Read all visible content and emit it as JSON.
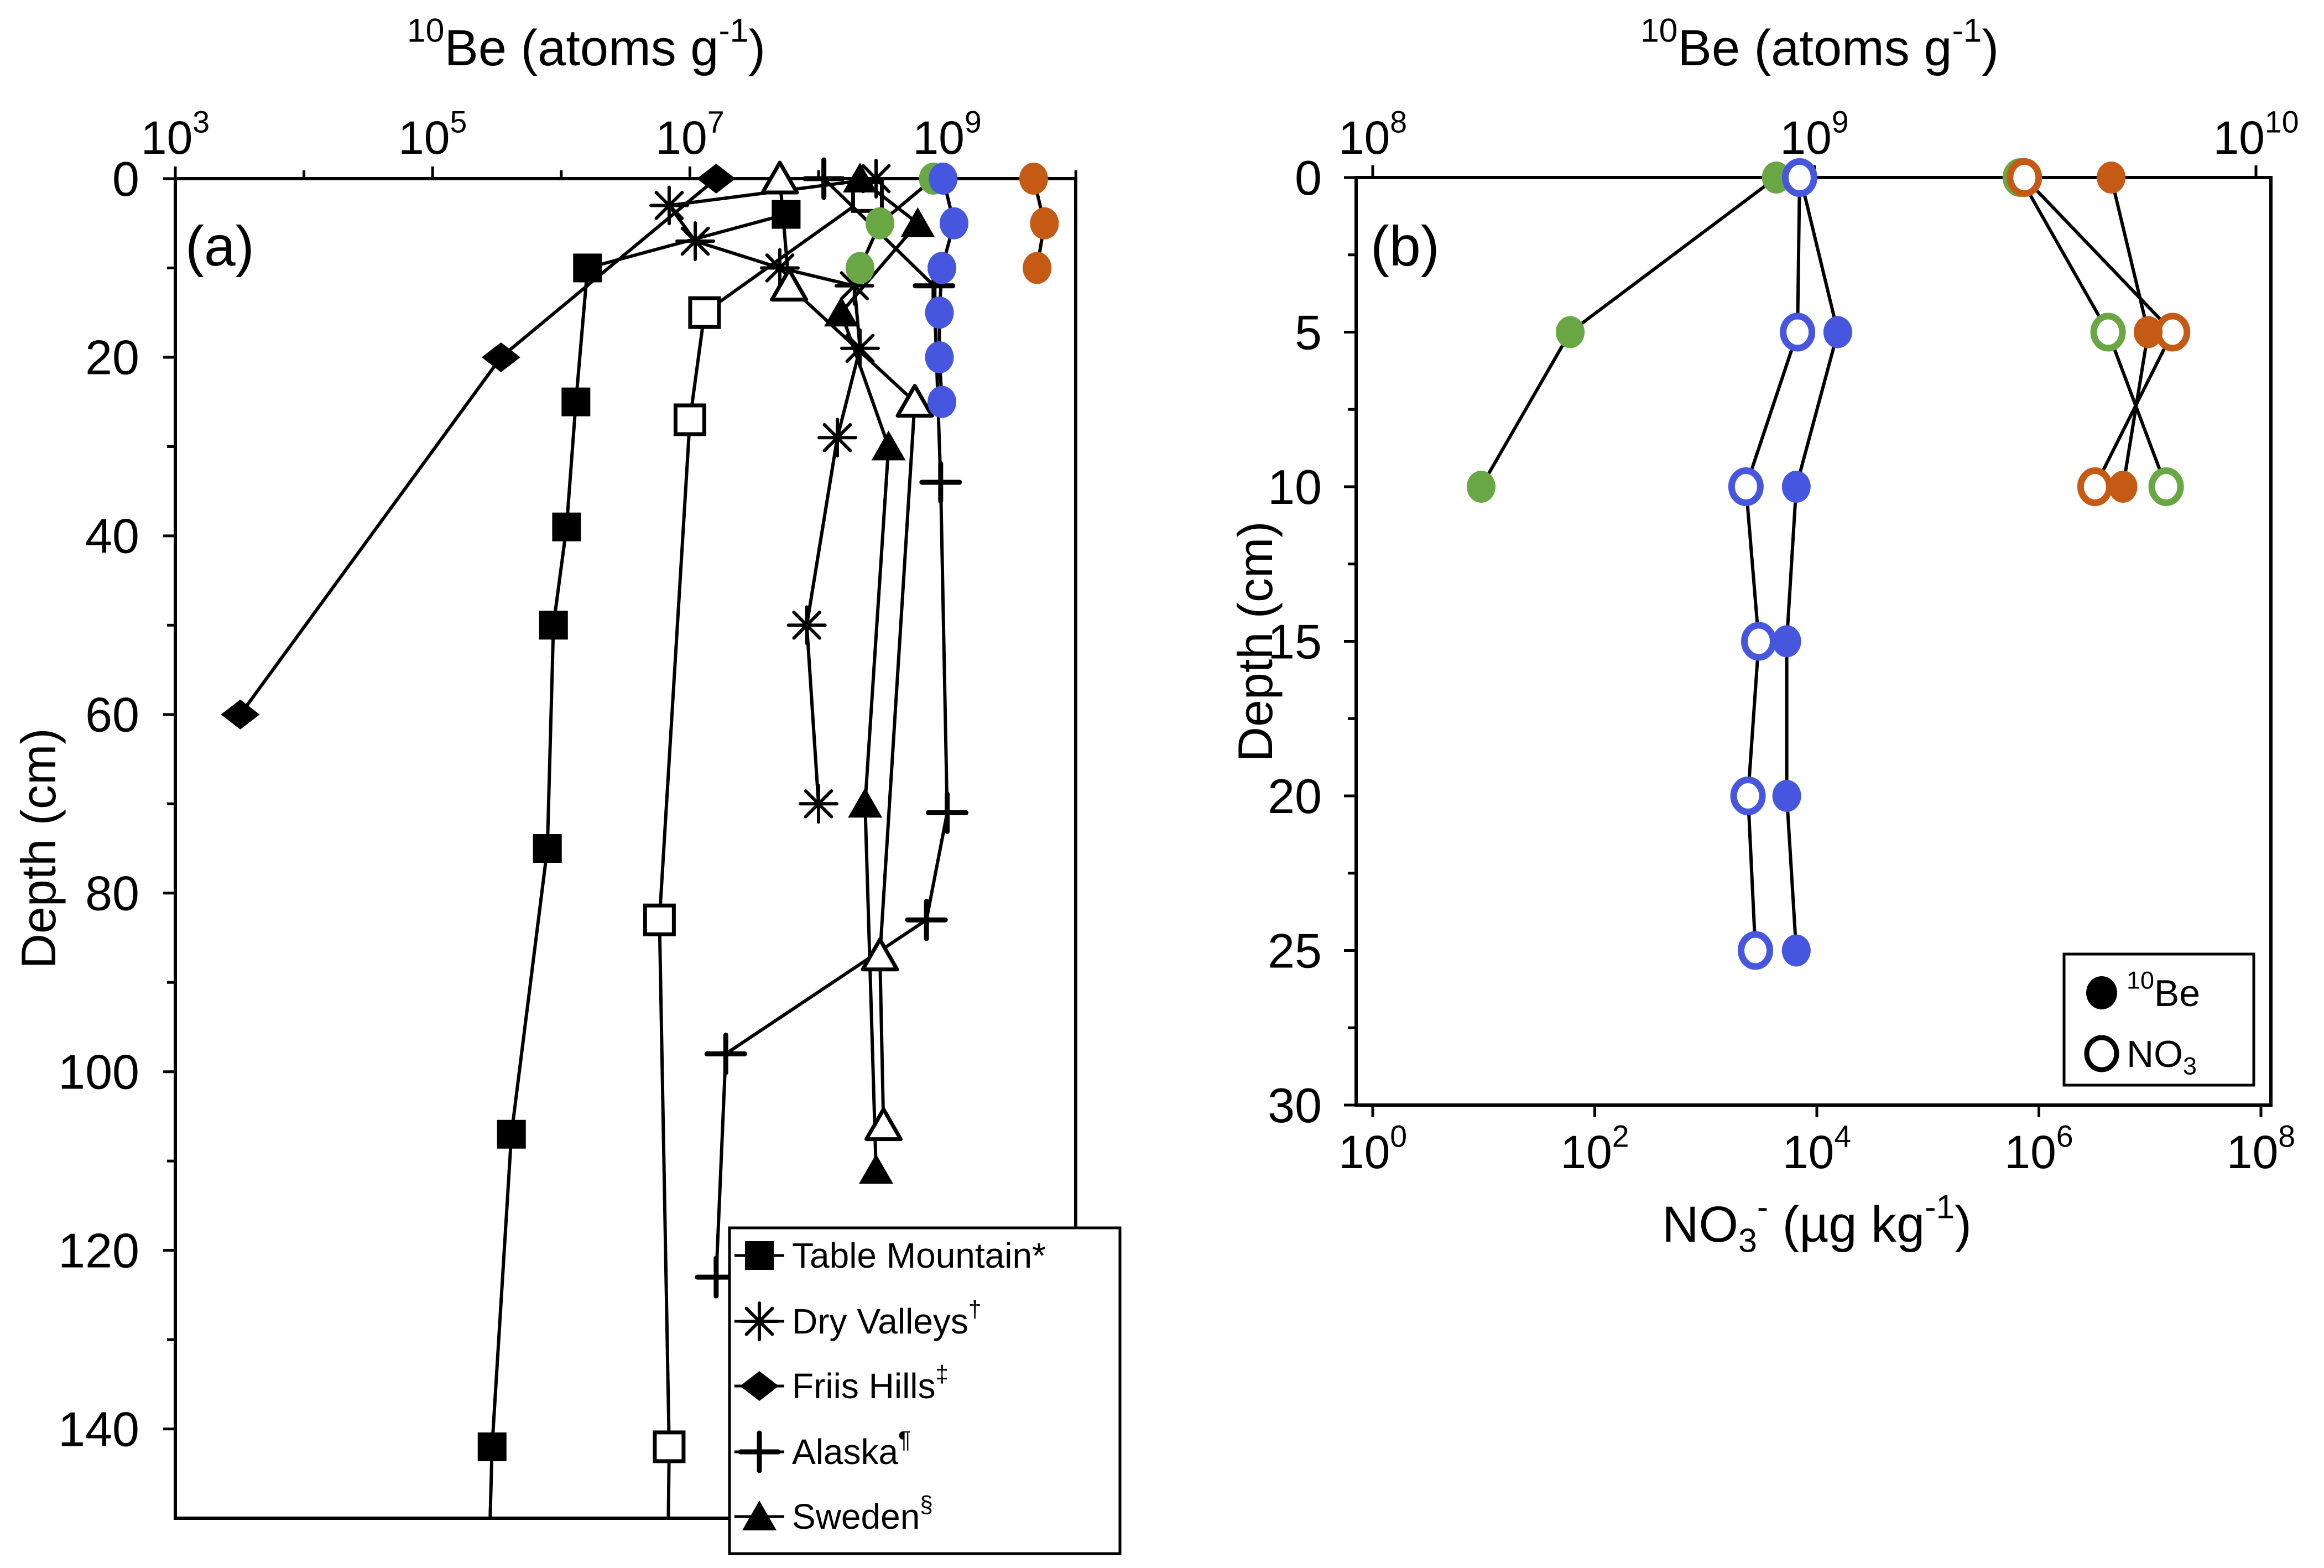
{
  "figure_colors": {
    "blue": "#4656DF",
    "green": "#69A744",
    "orange": "#C45A13",
    "black": "#000000",
    "white": "#FFFFFF"
  },
  "chart_data": [
    {
      "panel": "a",
      "panel_label": "(a)",
      "type": "line",
      "title_segments": [
        {
          "t": "10",
          "sup": true
        },
        {
          "t": "Be (atoms g"
        },
        {
          "t": "-1",
          "sup": true
        },
        {
          "t": ")"
        }
      ],
      "x_axis": {
        "position": "top",
        "scale": "log",
        "min": 1000.0,
        "max": 10000000000.0,
        "ticks": [
          {
            "v": 1000.0,
            "base": "10",
            "exp": "3"
          },
          {
            "v": 100000.0,
            "base": "10",
            "exp": "5"
          },
          {
            "v": 10000000.0,
            "base": "10",
            "exp": "7"
          },
          {
            "v": 1000000000.0,
            "base": "10",
            "exp": "9"
          }
        ],
        "minor": [
          10000.0,
          1000000.0,
          100000000.0,
          10000000000.0
        ]
      },
      "y_axis": {
        "label": "Depth (cm)",
        "min": 0,
        "max": 150,
        "ticks": [
          {
            "v": 0,
            "label": "0"
          },
          {
            "v": 20,
            "label": "20"
          },
          {
            "v": 40,
            "label": "40"
          },
          {
            "v": 60,
            "label": "60"
          },
          {
            "v": 80,
            "label": "80"
          },
          {
            "v": 100,
            "label": "100"
          },
          {
            "v": 120,
            "label": "120"
          },
          {
            "v": 140,
            "label": "140"
          }
        ],
        "minor": [
          10,
          30,
          50,
          70,
          90,
          110,
          130
        ]
      },
      "series": [
        {
          "id": "open_squares",
          "marker": "square",
          "open": true,
          "color": "black",
          "points": [
            [
              240000000.0,
              2
            ],
            [
              13000000.0,
              15
            ],
            [
              10000000.0,
              27
            ],
            [
              5800000.0,
              83
            ],
            [
              6900000.0,
              142
            ]
          ],
          "tail": [
            6800000.0,
            150
          ]
        },
        {
          "id": "table_mountain",
          "marker": "square",
          "open": false,
          "color": "black",
          "points": [
            [
              56000000.0,
              4
            ],
            [
              1600000.0,
              10
            ],
            [
              1300000.0,
              25
            ],
            [
              1100000.0,
              39
            ],
            [
              870000.0,
              50
            ],
            [
              780000.0,
              75
            ],
            [
              410000.0,
              107
            ],
            [
              290000.0,
              142
            ]
          ],
          "tail": [
            280000.0,
            150
          ]
        },
        {
          "id": "dry_valleys",
          "marker": "asterisk",
          "open": false,
          "color": "black",
          "points": [
            [
              280000000.0,
              0
            ],
            [
              6900000.0,
              3
            ],
            [
              11000000.0,
              7
            ],
            [
              50000000.0,
              10
            ],
            [
              190000000.0,
              12
            ],
            [
              210000000.0,
              19
            ],
            [
              140000000.0,
              29
            ],
            [
              81000000.0,
              50
            ],
            [
              100000000.0,
              70
            ]
          ]
        },
        {
          "id": "friis_hills",
          "marker": "diamond",
          "open": false,
          "color": "black",
          "points": [
            [
              16000000.0,
              0
            ],
            [
              340000.0,
              20
            ],
            [
              3200.0,
              60
            ]
          ]
        },
        {
          "id": "alaska",
          "marker": "plus",
          "open": false,
          "color": "black",
          "points": [
            [
              110000000.0,
              0
            ],
            [
              790000000.0,
              12
            ],
            [
              890000000.0,
              34
            ],
            [
              1000000000.0,
              71
            ],
            [
              690000000.0,
              83
            ],
            [
              19000000.0,
              98
            ],
            [
              16000000.0,
              123
            ]
          ]
        },
        {
          "id": "sweden",
          "marker": "triangle",
          "open": false,
          "color": "black",
          "points": [
            [
              210000000.0,
              0
            ],
            [
              590000000.0,
              5
            ],
            [
              150000000.0,
              15
            ],
            [
              350000000.0,
              30
            ],
            [
              230000000.0,
              70
            ],
            [
              280000000.0,
              111
            ]
          ]
        },
        {
          "id": "open_triangles",
          "marker": "triangle",
          "open": true,
          "color": "black",
          "points": [
            [
              50000000.0,
              0
            ],
            [
              59000000.0,
              12
            ],
            [
              560000000.0,
              25
            ],
            [
              300000000.0,
              87
            ],
            [
              320000000.0,
              106
            ]
          ]
        },
        {
          "id": "green_circles",
          "marker": "circle",
          "open": false,
          "color": "green",
          "points": [
            [
              780000000.0,
              0
            ],
            [
              300000000.0,
              5
            ],
            [
              210000000.0,
              10
            ]
          ]
        },
        {
          "id": "blue_circles",
          "marker": "circle",
          "open": false,
          "color": "blue",
          "points": [
            [
              930000000.0,
              0
            ],
            [
              1130000000.0,
              5
            ],
            [
              910000000.0,
              10
            ],
            [
              870000000.0,
              15
            ],
            [
              870000000.0,
              20
            ],
            [
              910000000.0,
              25
            ]
          ]
        },
        {
          "id": "orange_circles",
          "marker": "circle",
          "open": false,
          "color": "orange",
          "points": [
            [
              4700000000.0,
              0
            ],
            [
              5700000000.0,
              5
            ],
            [
              5000000000.0,
              10
            ]
          ]
        }
      ],
      "legend": {
        "entries": [
          {
            "series": "table_mountain",
            "segments": [
              {
                "t": "Table Mountain*"
              }
            ]
          },
          {
            "series": "dry_valleys",
            "segments": [
              {
                "t": "Dry Valleys"
              },
              {
                "t": "†",
                "sup": true
              }
            ]
          },
          {
            "series": "friis_hills",
            "segments": [
              {
                "t": "Friis Hills"
              },
              {
                "t": "‡",
                "sup": true
              }
            ]
          },
          {
            "series": "alaska",
            "segments": [
              {
                "t": "Alaska"
              },
              {
                "t": "¶",
                "sup": true
              }
            ]
          },
          {
            "series": "sweden",
            "segments": [
              {
                "t": "Sweden"
              },
              {
                "t": "§",
                "sup": true
              }
            ]
          }
        ]
      }
    },
    {
      "panel": "b",
      "panel_label": "(b)",
      "type": "line",
      "title_segments": [
        {
          "t": "10",
          "sup": true
        },
        {
          "t": "Be (atoms g"
        },
        {
          "t": "-1",
          "sup": true
        },
        {
          "t": ")"
        }
      ],
      "x_axis_top": {
        "position": "top",
        "scale": "log",
        "min": 100000000.0,
        "max": 10000000000.0,
        "ticks": [
          {
            "v": 100000000.0,
            "base": "10",
            "exp": "8"
          },
          {
            "v": 1000000000.0,
            "base": "10",
            "exp": "9"
          },
          {
            "v": 10000000000.0,
            "base": "10",
            "exp": "10"
          }
        ]
      },
      "x_axis_bottom": {
        "position": "bottom",
        "scale": "log",
        "min": 1,
        "max": 100000000.0,
        "label_segments": [
          {
            "t": "NO"
          },
          {
            "t": "3",
            "sub": true
          },
          {
            "t": "-",
            "sup": true
          },
          {
            "t": " (µg kg"
          },
          {
            "t": "-1",
            "sup": true
          },
          {
            "t": ")"
          }
        ],
        "ticks": [
          {
            "v": 1,
            "base": "10",
            "exp": "0"
          },
          {
            "v": 100.0,
            "base": "10",
            "exp": "2"
          },
          {
            "v": 10000.0,
            "base": "10",
            "exp": "4"
          },
          {
            "v": 1000000.0,
            "base": "10",
            "exp": "6"
          },
          {
            "v": 100000000.0,
            "base": "10",
            "exp": "8"
          }
        ]
      },
      "y_axis": {
        "label": "Depth (cm)",
        "min": 0,
        "max": 30,
        "ticks": [
          {
            "v": 0,
            "label": "0"
          },
          {
            "v": 5,
            "label": "5"
          },
          {
            "v": 10,
            "label": "10"
          },
          {
            "v": 15,
            "label": "15"
          },
          {
            "v": 20,
            "label": "20"
          },
          {
            "v": 25,
            "label": "25"
          },
          {
            "v": 30,
            "label": "30"
          }
        ],
        "minor": [
          2.5,
          7.5,
          12.5,
          17.5,
          22.5,
          27.5
        ]
      },
      "series": [
        {
          "id": "no3_green",
          "axis": "bottom",
          "marker": "circle",
          "open": true,
          "color": "green",
          "points": [
            [
              680000.0,
              0
            ],
            [
              4200000.0,
              5
            ],
            [
              14000000.0,
              10
            ]
          ]
        },
        {
          "id": "no3_orange",
          "axis": "bottom",
          "marker": "circle",
          "open": true,
          "color": "orange",
          "points": [
            [
              740000.0,
              0
            ],
            [
              16000000.0,
              5
            ],
            [
              3200000.0,
              10
            ]
          ]
        },
        {
          "id": "be10_green",
          "axis": "top",
          "marker": "circle",
          "open": false,
          "color": "green",
          "points": [
            [
              820000000.0,
              0
            ],
            [
              280000000.0,
              5
            ],
            [
              176000000.0,
              10
            ]
          ]
        },
        {
          "id": "be10_orange",
          "axis": "top",
          "marker": "circle",
          "open": false,
          "color": "orange",
          "points": [
            [
              4700000000.0,
              0
            ],
            [
              5700000000.0,
              5
            ],
            [
              5000000000.0,
              10
            ]
          ]
        },
        {
          "id": "be10_blue",
          "axis": "top",
          "marker": "circle",
          "open": false,
          "color": "blue",
          "points": [
            [
              930000000.0,
              0
            ],
            [
              1130000000.0,
              5
            ],
            [
              910000000.0,
              10
            ],
            [
              866000000.0,
              15
            ],
            [
              866000000.0,
              20
            ],
            [
              910000000.0,
              25
            ]
          ]
        },
        {
          "id": "no3_blue",
          "axis": "bottom",
          "marker": "circle",
          "open": true,
          "color": "blue",
          "points": [
            [
              7000.0,
              0
            ],
            [
              6700.0,
              5
            ],
            [
              2300.0,
              10
            ],
            [
              3000.0,
              15
            ],
            [
              2400.0,
              20
            ],
            [
              2800.0,
              25
            ]
          ]
        }
      ],
      "legend": {
        "entries": [
          {
            "marker": "circle-filled",
            "segments": [
              {
                "t": "10",
                "sup": true
              },
              {
                "t": "Be"
              }
            ]
          },
          {
            "marker": "circle-open",
            "segments": [
              {
                "t": "NO"
              },
              {
                "t": "3",
                "sub": true
              }
            ]
          }
        ]
      }
    }
  ]
}
